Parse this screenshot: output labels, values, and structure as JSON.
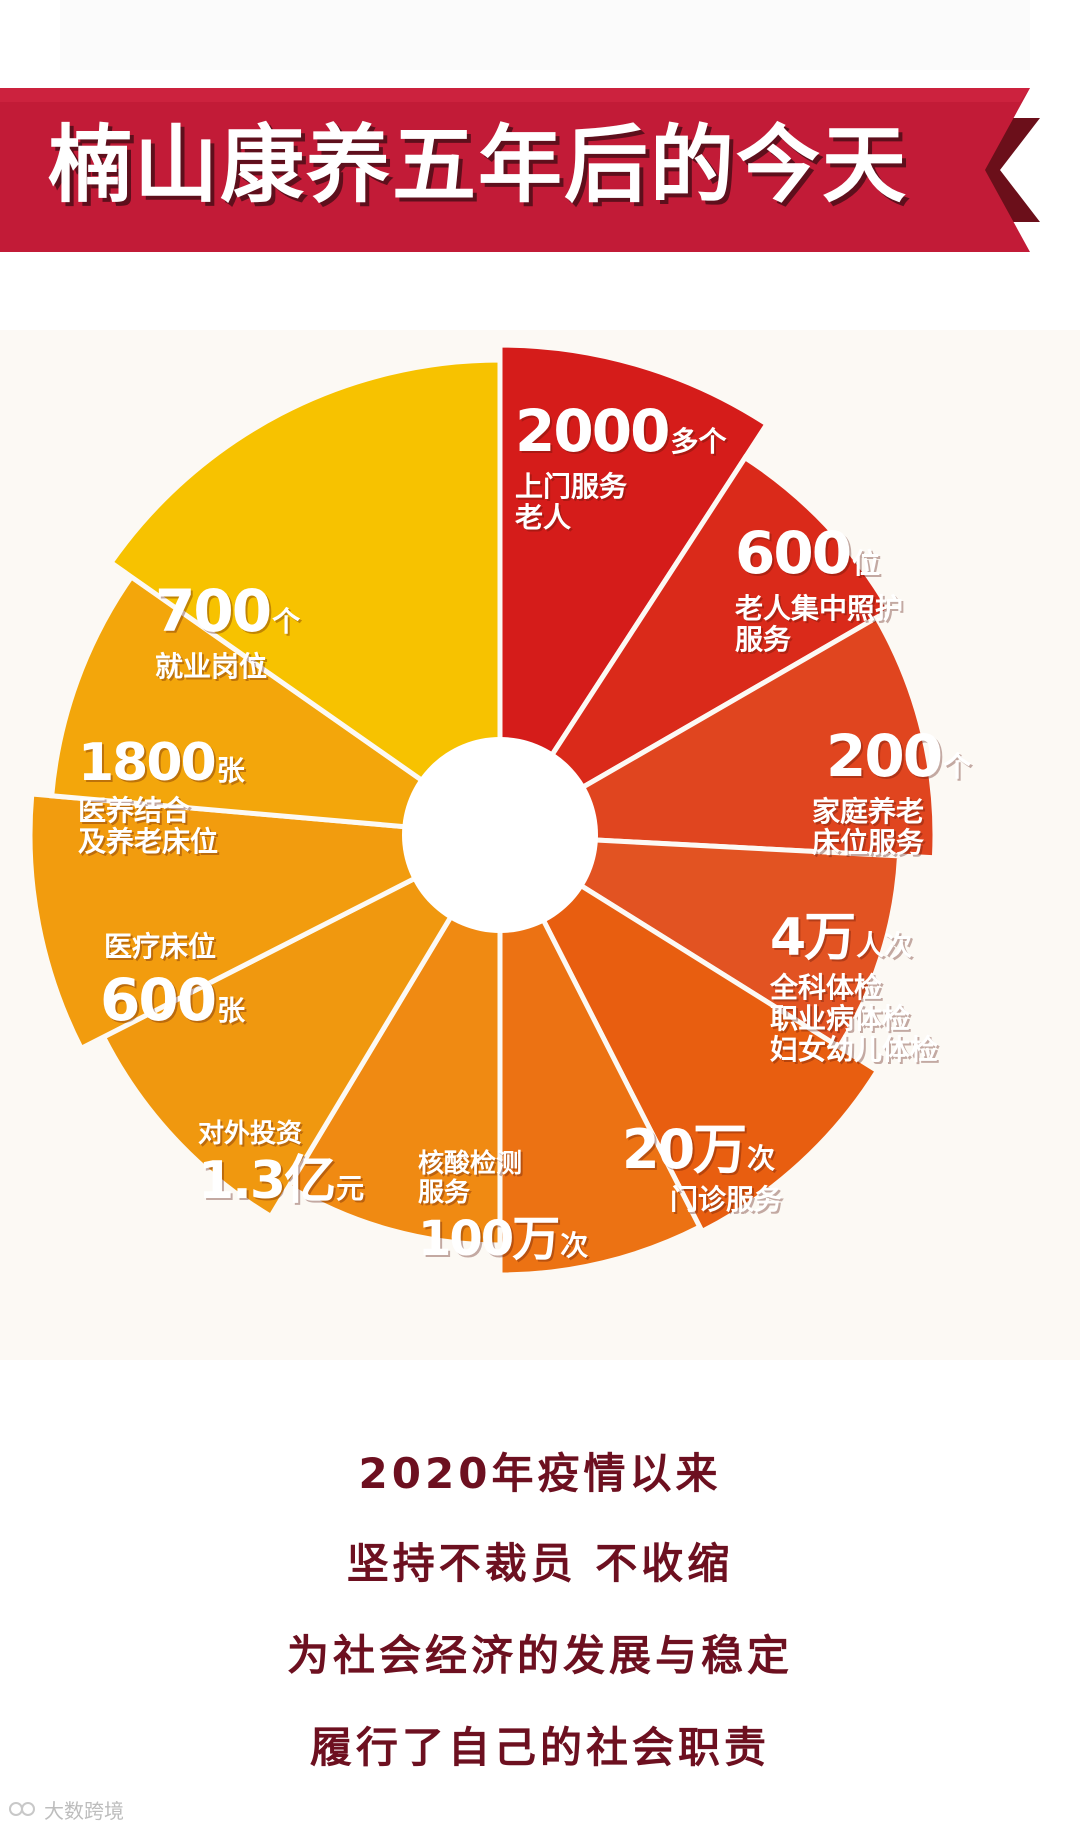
{
  "header": {
    "title": "楠山康养五年后的今天"
  },
  "segments": [
    {
      "number": "2000",
      "unit": "多个",
      "lines": [
        "上门服务",
        "老人"
      ],
      "color": "#d51c1a"
    },
    {
      "number": "600",
      "unit": "位",
      "lines": [
        "老人集中照护",
        "服务"
      ],
      "color": "#da2a1a"
    },
    {
      "number": "200",
      "unit": "个",
      "lines": [
        "家庭养老",
        "床位服务"
      ],
      "color": "#e0451f"
    },
    {
      "number": "4万",
      "unit": "人次",
      "lines": [
        "全科体检",
        "职业病体检",
        "妇女幼儿体检"
      ],
      "color": "#e25322"
    },
    {
      "number": "20万",
      "unit": "次",
      "lines": [
        "门诊服务"
      ],
      "color": "#e85e10"
    },
    {
      "number": "100万",
      "unit": "次",
      "lines": [
        "核酸检测",
        "服务"
      ],
      "color": "#ec7213"
    },
    {
      "number": "1.3亿",
      "unit": "元",
      "lines": [
        "对外投资"
      ],
      "color": "#f08a12"
    },
    {
      "number": "600",
      "unit": "张",
      "lines": [
        "医疗床位"
      ],
      "color": "#f0980f"
    },
    {
      "number": "1800",
      "unit": "张",
      "lines": [
        "医养结合",
        "及养老床位"
      ],
      "color": "#f29c0e"
    },
    {
      "number": "700",
      "unit": "个",
      "lines": [
        "就业岗位"
      ],
      "color": "#f3a60b"
    },
    {
      "number": "",
      "unit": "",
      "lines": [],
      "color": "#f7c200"
    }
  ],
  "footer": {
    "lines": [
      "2020年疫情以来",
      "坚持不裁员 不收缩",
      "为社会经济的发展与稳定",
      "履行了自己的社会职责"
    ]
  },
  "watermark": {
    "text": "大数跨境"
  }
}
